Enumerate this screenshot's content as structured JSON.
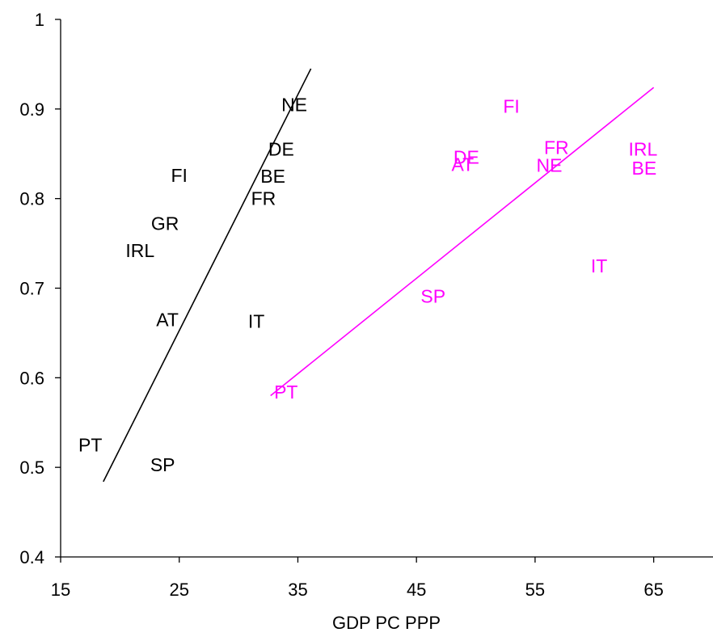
{
  "chart_data": {
    "type": "scatter",
    "title": "",
    "xlabel": "GDP PC PPP",
    "ylabel": "",
    "xlim": [
      15,
      70
    ],
    "ylim": [
      0.4,
      1.0
    ],
    "xticks": [
      15,
      25,
      35,
      45,
      55,
      65
    ],
    "xtick_labels": [
      "15",
      "25",
      "35",
      "45",
      "55",
      "65"
    ],
    "yticks": [
      0.4,
      0.5,
      0.6,
      0.7,
      0.8,
      0.9,
      1.0
    ],
    "ytick_labels": [
      "0.4",
      "0.5",
      "0.6",
      "0.7",
      "0.8",
      "0.9",
      "1"
    ],
    "grid": false,
    "legend": "none",
    "series": [
      {
        "color": "#000000",
        "points": [
          {
            "label": "NE",
            "x": 34.7,
            "y": 0.905
          },
          {
            "label": "DE",
            "x": 33.6,
            "y": 0.855
          },
          {
            "label": "FI",
            "x": 25.0,
            "y": 0.826
          },
          {
            "label": "BE",
            "x": 32.9,
            "y": 0.825
          },
          {
            "label": "FR",
            "x": 32.1,
            "y": 0.8
          },
          {
            "label": "GR",
            "x": 23.8,
            "y": 0.772
          },
          {
            "label": "IRL",
            "x": 21.7,
            "y": 0.742
          },
          {
            "label": "AT",
            "x": 24.0,
            "y": 0.665
          },
          {
            "label": "IT",
            "x": 31.5,
            "y": 0.663
          },
          {
            "label": "PT",
            "x": 17.5,
            "y": 0.525
          },
          {
            "label": "SP",
            "x": 23.6,
            "y": 0.503
          }
        ],
        "trendline": {
          "x": [
            18.6,
            36.1
          ],
          "y": [
            0.484,
            0.945
          ]
        }
      },
      {
        "color": "#ff00ff",
        "points": [
          {
            "label": "FI",
            "x": 53.0,
            "y": 0.903
          },
          {
            "label": "FR",
            "x": 56.8,
            "y": 0.857
          },
          {
            "label": "IRL",
            "x": 64.1,
            "y": 0.855
          },
          {
            "label": "DE",
            "x": 49.2,
            "y": 0.846
          },
          {
            "label": "AT",
            "x": 48.9,
            "y": 0.838
          },
          {
            "label": "NE",
            "x": 56.2,
            "y": 0.837
          },
          {
            "label": "BE",
            "x": 64.2,
            "y": 0.834
          },
          {
            "label": "IT",
            "x": 60.4,
            "y": 0.725
          },
          {
            "label": "SP",
            "x": 46.4,
            "y": 0.691
          },
          {
            "label": "PT",
            "x": 34.0,
            "y": 0.584
          }
        ],
        "trendline": {
          "x": [
            32.7,
            65.0
          ],
          "y": [
            0.58,
            0.924
          ]
        }
      }
    ]
  }
}
